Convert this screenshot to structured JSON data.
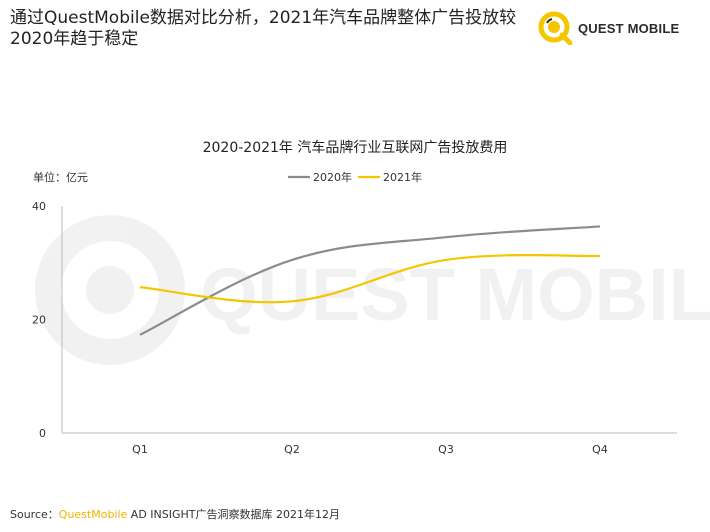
{
  "headline": "通过QuestMobile数据对比分析，2021年汽车品牌整体广告投放较2020年趋于稳定",
  "brand": {
    "name": "QUEST MOBILE",
    "accent_color": "#f5c500",
    "icon": "quest-mobile-logo-icon"
  },
  "watermark": "QUEST MOBILE",
  "source": {
    "prefix": "Source：",
    "highlight": "QuestMobile",
    "rest": " AD INSIGHT广告洞察数据库 2021年12月"
  },
  "chart_data": {
    "type": "line",
    "title": "2020-2021年 汽车品牌行业互联网广告投放费用",
    "unit_label": "单位：亿元",
    "categories": [
      "Q1",
      "Q2",
      "Q3",
      "Q4"
    ],
    "ylim": [
      0,
      40
    ],
    "yticks": [
      0,
      20,
      40
    ],
    "grid": false,
    "legend_position": "top-center",
    "series": [
      {
        "name": "2020年",
        "values": [
          17.3,
          30.5,
          34.5,
          36.4
        ],
        "color": "#8c8c8c"
      },
      {
        "name": "2021年",
        "values": [
          25.7,
          23.2,
          30.5,
          31.2
        ],
        "color": "#f5c500"
      }
    ]
  }
}
